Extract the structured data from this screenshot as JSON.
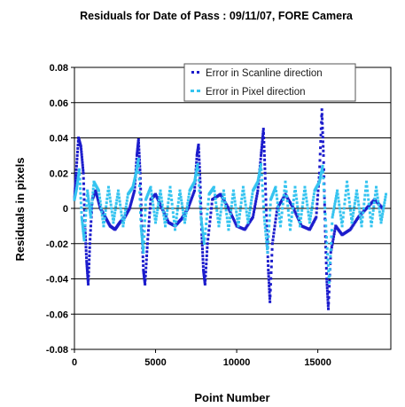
{
  "chart_data": {
    "type": "scatter",
    "title": "Residuals for Date of Pass : 09/11/07, FORE Camera",
    "xlabel": "Point Number",
    "ylabel": "Residuals in pixels",
    "xlim": [
      0,
      19500
    ],
    "ylim": [
      -0.08,
      0.08
    ],
    "x_ticks": [
      0,
      5000,
      10000,
      15000
    ],
    "x_tick_labels": [
      "0",
      "5000",
      "10000",
      "15000"
    ],
    "y_ticks": [
      -0.08,
      -0.06,
      -0.04,
      -0.02,
      0,
      0.02,
      0.04,
      0.06,
      0.08
    ],
    "y_tick_labels": [
      "-0.08",
      "-0.06",
      "-0.04",
      "-0.02",
      "0",
      "0.02",
      "0.04",
      "0.06",
      "0.08"
    ],
    "grid": "horizontal",
    "legend_position": "top-right",
    "series": [
      {
        "name": "Error in Scanline direction",
        "color": "#1c1ccc",
        "points": [
          [
            0,
            0.005
          ],
          [
            100,
            0.02
          ],
          [
            250,
            0.04
          ],
          [
            400,
            0.035
          ],
          [
            550,
            0.02
          ],
          [
            650,
            -0.01
          ],
          [
            750,
            -0.03
          ],
          [
            850,
            -0.043
          ],
          [
            950,
            -0.02
          ],
          [
            1100,
            0.005
          ],
          [
            1300,
            0.01
          ],
          [
            1600,
            0.0
          ],
          [
            1900,
            -0.005
          ],
          [
            2200,
            -0.01
          ],
          [
            2500,
            -0.012
          ],
          [
            2800,
            -0.008
          ],
          [
            3100,
            -0.005
          ],
          [
            3400,
            0.0
          ],
          [
            3700,
            0.01
          ],
          [
            3850,
            0.03
          ],
          [
            3950,
            0.039
          ],
          [
            4050,
            0.02
          ],
          [
            4150,
            -0.01
          ],
          [
            4250,
            -0.035
          ],
          [
            4350,
            -0.043
          ],
          [
            4500,
            -0.02
          ],
          [
            4700,
            0.005
          ],
          [
            5000,
            0.008
          ],
          [
            5400,
            0.0
          ],
          [
            5800,
            -0.008
          ],
          [
            6200,
            -0.01
          ],
          [
            6600,
            -0.006
          ],
          [
            7000,
            0.0
          ],
          [
            7400,
            0.01
          ],
          [
            7550,
            0.03
          ],
          [
            7650,
            0.036
          ],
          [
            7750,
            0.015
          ],
          [
            7850,
            -0.015
          ],
          [
            7950,
            -0.035
          ],
          [
            8050,
            -0.043
          ],
          [
            8200,
            -0.02
          ],
          [
            8500,
            0.005
          ],
          [
            9000,
            0.008
          ],
          [
            9500,
            0.0
          ],
          [
            10000,
            -0.01
          ],
          [
            10500,
            -0.012
          ],
          [
            11000,
            -0.005
          ],
          [
            11300,
            0.01
          ],
          [
            11500,
            0.03
          ],
          [
            11650,
            0.045
          ],
          [
            11750,
            0.02
          ],
          [
            11850,
            -0.01
          ],
          [
            11950,
            -0.035
          ],
          [
            12050,
            -0.053
          ],
          [
            12200,
            -0.02
          ],
          [
            12500,
            0.0
          ],
          [
            13000,
            0.008
          ],
          [
            13500,
            0.0
          ],
          [
            14000,
            -0.01
          ],
          [
            14500,
            -0.012
          ],
          [
            14900,
            -0.005
          ],
          [
            15100,
            0.02
          ],
          [
            15250,
            0.056
          ],
          [
            15350,
            0.03
          ],
          [
            15450,
            -0.01
          ],
          [
            15550,
            -0.04
          ],
          [
            15650,
            -0.057
          ],
          [
            15800,
            -0.025
          ],
          [
            16100,
            -0.01
          ],
          [
            16500,
            -0.015
          ],
          [
            17000,
            -0.012
          ],
          [
            17500,
            -0.005
          ],
          [
            18000,
            0.0
          ],
          [
            18500,
            0.005
          ],
          [
            19000,
            0.0
          ]
        ]
      },
      {
        "name": "Error in Pixel direction",
        "color": "#35c4f0",
        "points": [
          [
            0,
            0.005
          ],
          [
            150,
            0.012
          ],
          [
            300,
            0.022
          ],
          [
            450,
            -0.005
          ],
          [
            600,
            -0.018
          ],
          [
            800,
            0.01
          ],
          [
            1000,
            -0.005
          ],
          [
            1200,
            0.015
          ],
          [
            1500,
            0.01
          ],
          [
            1800,
            -0.01
          ],
          [
            2100,
            0.012
          ],
          [
            2400,
            -0.008
          ],
          [
            2700,
            0.01
          ],
          [
            3000,
            -0.01
          ],
          [
            3300,
            0.008
          ],
          [
            3600,
            0.012
          ],
          [
            3800,
            0.02
          ],
          [
            3950,
            0.028
          ],
          [
            4100,
            -0.01
          ],
          [
            4250,
            -0.025
          ],
          [
            4400,
            0.005
          ],
          [
            4700,
            0.012
          ],
          [
            5000,
            -0.008
          ],
          [
            5300,
            0.01
          ],
          [
            5600,
            -0.01
          ],
          [
            5900,
            0.012
          ],
          [
            6200,
            -0.012
          ],
          [
            6500,
            0.01
          ],
          [
            6800,
            -0.008
          ],
          [
            7100,
            0.01
          ],
          [
            7400,
            0.015
          ],
          [
            7600,
            0.025
          ],
          [
            7800,
            -0.005
          ],
          [
            8000,
            -0.02
          ],
          [
            8300,
            0.008
          ],
          [
            8600,
            0.012
          ],
          [
            8900,
            -0.01
          ],
          [
            9200,
            0.01
          ],
          [
            9500,
            -0.012
          ],
          [
            9800,
            0.01
          ],
          [
            10100,
            -0.01
          ],
          [
            10400,
            0.012
          ],
          [
            10700,
            -0.008
          ],
          [
            11000,
            0.01
          ],
          [
            11300,
            0.015
          ],
          [
            11500,
            0.025
          ],
          [
            11700,
            -0.005
          ],
          [
            11900,
            -0.025
          ],
          [
            12100,
            0.005
          ],
          [
            12400,
            0.012
          ],
          [
            12700,
            -0.01
          ],
          [
            13000,
            0.015
          ],
          [
            13300,
            -0.012
          ],
          [
            13600,
            0.012
          ],
          [
            13900,
            -0.01
          ],
          [
            14200,
            0.012
          ],
          [
            14500,
            -0.008
          ],
          [
            14800,
            0.01
          ],
          [
            15100,
            0.015
          ],
          [
            15300,
            0.024
          ],
          [
            15500,
            -0.01
          ],
          [
            15700,
            -0.042
          ],
          [
            15900,
            -0.005
          ],
          [
            16200,
            0.01
          ],
          [
            16500,
            -0.01
          ],
          [
            16800,
            0.015
          ],
          [
            17100,
            -0.008
          ],
          [
            17400,
            0.01
          ],
          [
            17700,
            -0.01
          ],
          [
            18000,
            0.015
          ],
          [
            18300,
            -0.01
          ],
          [
            18600,
            0.012
          ],
          [
            18900,
            -0.008
          ],
          [
            19200,
            0.008
          ]
        ]
      }
    ]
  }
}
